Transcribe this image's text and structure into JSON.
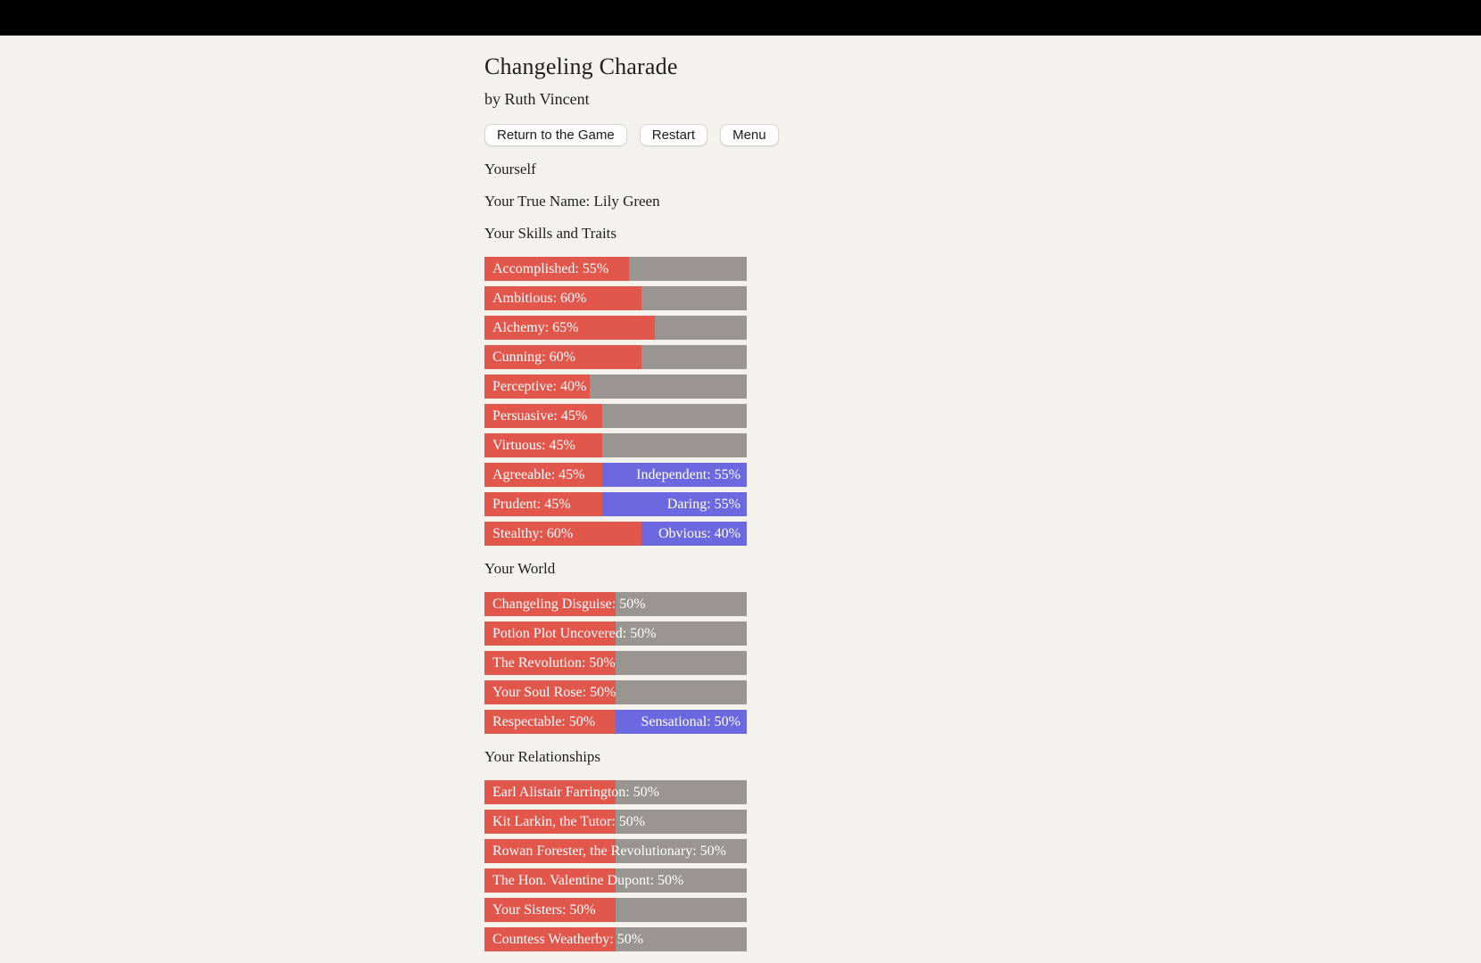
{
  "header": {
    "title": "Changeling Charade",
    "byline": "by Ruth Vincent"
  },
  "toolbar": {
    "return_label": "Return to the Game",
    "restart_label": "Restart",
    "menu_label": "Menu"
  },
  "profile": {
    "heading": "Yourself",
    "true_name": "Your True Name: Lily Green"
  },
  "colors": {
    "bar_fill": "#e2574c",
    "bar_opposed": "#6b68e0",
    "bar_track": "#999691",
    "background": "#f4f2ec",
    "topbar": "#000000"
  },
  "sections": [
    {
      "heading": "Your Skills and Traits",
      "bars": [
        {
          "label": "Accomplished",
          "value": 55
        },
        {
          "label": "Ambitious",
          "value": 60
        },
        {
          "label": "Alchemy",
          "value": 65
        },
        {
          "label": "Cunning",
          "value": 60
        },
        {
          "label": "Perceptive",
          "value": 40
        },
        {
          "label": "Persuasive",
          "value": 45
        },
        {
          "label": "Virtuous",
          "value": 45
        },
        {
          "left": {
            "label": "Agreeable",
            "value": 45
          },
          "right": {
            "label": "Independent",
            "value": 55
          }
        },
        {
          "left": {
            "label": "Prudent",
            "value": 45
          },
          "right": {
            "label": "Daring",
            "value": 55
          }
        },
        {
          "left": {
            "label": "Stealthy",
            "value": 60
          },
          "right": {
            "label": "Obvious",
            "value": 40
          }
        }
      ]
    },
    {
      "heading": "Your World",
      "bars": [
        {
          "label": "Changeling Disguise",
          "value": 50
        },
        {
          "label": "Potion Plot Uncovered",
          "value": 50
        },
        {
          "label": "The Revolution",
          "value": 50
        },
        {
          "label": "Your Soul Rose",
          "value": 50
        },
        {
          "left": {
            "label": "Respectable",
            "value": 50
          },
          "right": {
            "label": "Sensational",
            "value": 50
          }
        }
      ]
    },
    {
      "heading": "Your Relationships",
      "bars": [
        {
          "label": "Earl Alistair Farrington",
          "value": 50
        },
        {
          "label": "Kit Larkin, the Tutor",
          "value": 50
        },
        {
          "label": "Rowan Forester, the Revolutionary",
          "value": 50
        },
        {
          "label": "The Hon. Valentine Dupont",
          "value": 50
        },
        {
          "label": "Your Sisters",
          "value": 50
        },
        {
          "label": "Countess Weatherby",
          "value": 50
        }
      ]
    }
  ]
}
